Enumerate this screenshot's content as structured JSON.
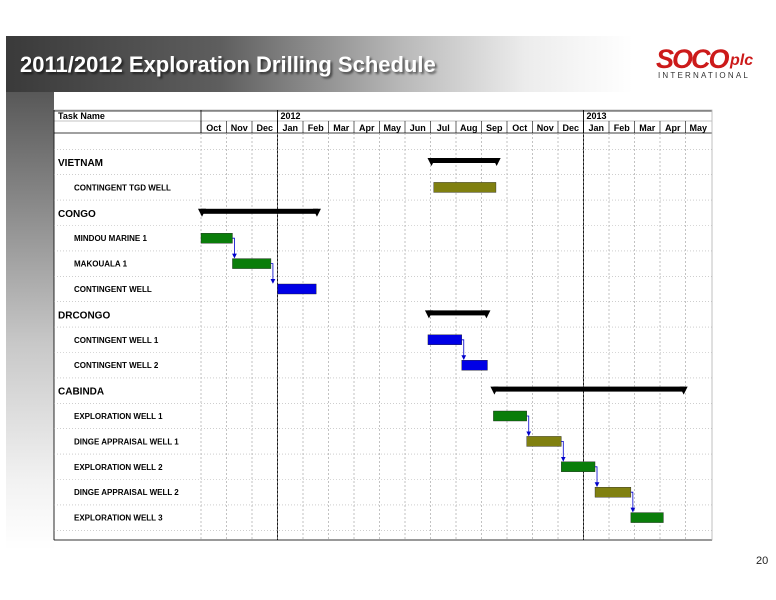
{
  "slide": {
    "title": "2011/2012 Exploration Drilling Schedule",
    "page_number": "20",
    "logo": {
      "main": "SOCO",
      "suffix": "plc",
      "tagline": "INTERNATIONAL"
    }
  },
  "colors": {
    "summary": "#000000",
    "green": "#0a7d0a",
    "olive": "#808010",
    "blue": "#0000e6"
  },
  "chart_data": {
    "type": "gantt",
    "task_header": "Task Name",
    "year_labels": [
      {
        "label": "2012",
        "month_index": 3
      },
      {
        "label": "2013",
        "month_index": 15
      }
    ],
    "months": [
      "Oct",
      "Nov",
      "Dec",
      "Jan",
      "Feb",
      "Mar",
      "Apr",
      "May",
      "Jun",
      "Jul",
      "Aug",
      "Sep",
      "Oct",
      "Nov",
      "Dec",
      "Jan",
      "Feb",
      "Mar",
      "Apr",
      "May"
    ],
    "month_axis_start": "2011-10",
    "tasks": [
      {
        "name": "VIETNAM",
        "summary": true,
        "start": "2012-07-01",
        "end": "2012-09-20",
        "color": "#000000"
      },
      {
        "name": "CONTINGENT TGD WELL",
        "summary": false,
        "start": "2012-07-05",
        "end": "2012-09-18",
        "color": "#808010"
      },
      {
        "name": "CONGO",
        "summary": true,
        "start": "2011-10-01",
        "end": "2012-02-18",
        "color": "#000000"
      },
      {
        "name": "MINDOU MARINE 1",
        "summary": false,
        "start": "2011-10-01",
        "end": "2011-11-08",
        "color": "#0a7d0a"
      },
      {
        "name": "MAKOUALA 1",
        "summary": false,
        "start": "2011-11-08",
        "end": "2011-12-24",
        "color": "#0a7d0a"
      },
      {
        "name": "CONTINGENT WELL",
        "summary": false,
        "start": "2012-01-01",
        "end": "2012-02-16",
        "color": "#0000e6"
      },
      {
        "name": "DRCONGO",
        "summary": true,
        "start": "2012-06-28",
        "end": "2012-09-08",
        "color": "#000000"
      },
      {
        "name": "CONTINGENT WELL 1",
        "summary": false,
        "start": "2012-06-28",
        "end": "2012-08-08",
        "color": "#0000e6"
      },
      {
        "name": "CONTINGENT WELL 2",
        "summary": false,
        "start": "2012-08-08",
        "end": "2012-09-08",
        "color": "#0000e6"
      },
      {
        "name": "CABINDA",
        "summary": true,
        "start": "2012-09-15",
        "end": "2013-04-30",
        "color": "#000000"
      },
      {
        "name": "EXPLORATION WELL 1",
        "summary": false,
        "start": "2012-09-15",
        "end": "2012-10-25",
        "color": "#0a7d0a"
      },
      {
        "name": "DINGE APPRAISAL WELL 1",
        "summary": false,
        "start": "2012-10-25",
        "end": "2012-12-05",
        "color": "#808010"
      },
      {
        "name": "EXPLORATION WELL 2",
        "summary": false,
        "start": "2012-12-05",
        "end": "2013-01-15",
        "color": "#0a7d0a"
      },
      {
        "name": "DINGE APPRAISAL WELL 2",
        "summary": false,
        "start": "2013-01-15",
        "end": "2013-02-25",
        "color": "#808010"
      },
      {
        "name": "EXPLORATION WELL 3",
        "summary": false,
        "start": "2013-02-25",
        "end": "2013-04-05",
        "color": "#0a7d0a"
      }
    ],
    "dependencies": [
      {
        "from": "MINDOU MARINE 1",
        "to": "MAKOUALA 1"
      },
      {
        "from": "MAKOUALA 1",
        "to": "CONTINGENT WELL"
      },
      {
        "from": "CONTINGENT WELL 1",
        "to": "CONTINGENT WELL 2"
      },
      {
        "from": "EXPLORATION WELL 1",
        "to": "DINGE APPRAISAL WELL 1"
      },
      {
        "from": "DINGE APPRAISAL WELL 1",
        "to": "EXPLORATION WELL 2"
      },
      {
        "from": "EXPLORATION WELL 2",
        "to": "DINGE APPRAISAL WELL 2"
      },
      {
        "from": "DINGE APPRAISAL WELL 2",
        "to": "EXPLORATION WELL 3"
      }
    ],
    "grid": true
  }
}
